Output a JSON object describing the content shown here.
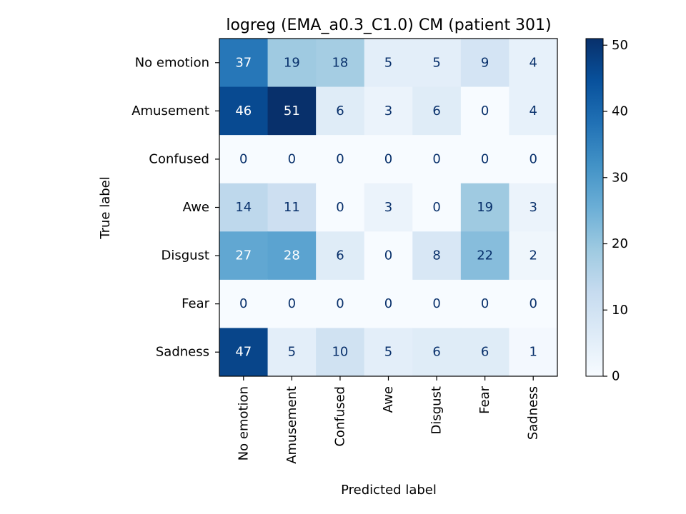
{
  "chart_data": {
    "type": "heatmap",
    "title": "logreg (EMA_a0.3_C1.0) CM (patient 301)",
    "xlabel": "Predicted label",
    "ylabel": "True label",
    "x_categories": [
      "No emotion",
      "Amusement",
      "Confused",
      "Awe",
      "Disgust",
      "Fear",
      "Sadness"
    ],
    "y_categories": [
      "No emotion",
      "Amusement",
      "Confused",
      "Awe",
      "Disgust",
      "Fear",
      "Sadness"
    ],
    "values": [
      [
        37,
        19,
        18,
        5,
        5,
        9,
        4
      ],
      [
        46,
        51,
        6,
        3,
        6,
        0,
        4
      ],
      [
        0,
        0,
        0,
        0,
        0,
        0,
        0
      ],
      [
        14,
        11,
        0,
        3,
        0,
        19,
        3
      ],
      [
        27,
        28,
        6,
        0,
        8,
        22,
        2
      ],
      [
        0,
        0,
        0,
        0,
        0,
        0,
        0
      ],
      [
        47,
        5,
        10,
        5,
        6,
        6,
        1
      ]
    ],
    "colormap": "Blues",
    "vmin": 0,
    "vmax": 51,
    "colorbar_ticks": [
      0,
      10,
      20,
      30,
      40,
      50
    ],
    "grid": false
  }
}
